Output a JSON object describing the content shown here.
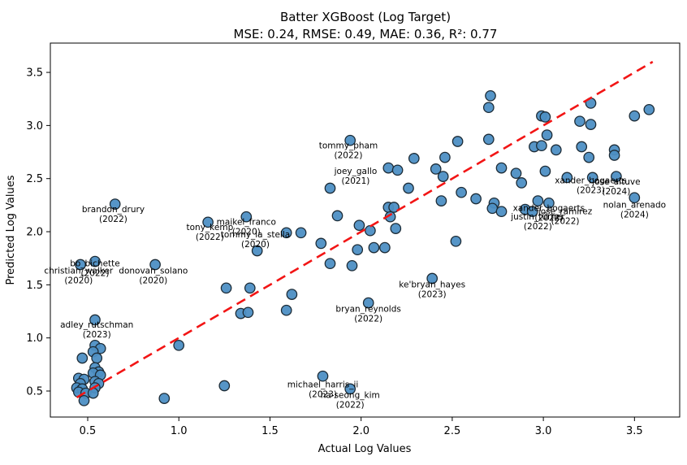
{
  "figure": {
    "title": "Batter XGBoost (Log Target)",
    "subtitle": "MSE: 0.24, RMSE: 0.49, MAE: 0.36, R²: 0.77"
  },
  "chart_data": {
    "type": "scatter",
    "title": "Batter XGBoost (Log Target)",
    "subtitle": "MSE: 0.24, RMSE: 0.49, MAE: 0.36, R²: 0.77",
    "metrics": {
      "MSE": 0.24,
      "RMSE": 0.49,
      "MAE": 0.36,
      "R2": 0.77
    },
    "xlabel": "Actual Log Values",
    "ylabel": "Predicted Log Values",
    "xlim": [
      0.295,
      3.748
    ],
    "ylim": [
      0.255,
      3.776
    ],
    "xticks": [
      0.5,
      1.0,
      1.5,
      2.0,
      2.5,
      3.0,
      3.5
    ],
    "yticks": [
      0.5,
      1.0,
      1.5,
      2.0,
      2.5,
      3.0,
      3.5
    ],
    "grid": false,
    "legend": "none",
    "identity_line": {
      "from": [
        0.44,
        0.44
      ],
      "to": [
        3.6,
        3.6
      ],
      "color": "#f21515",
      "style": "dashed",
      "width": 2.6
    },
    "marker": {
      "fill": "#4d8fc4",
      "edge": "#1c2b36",
      "radius": 6.2,
      "opacity": 0.95
    },
    "annotation_styles": {
      "red": "#ee1c1c",
      "blue": "#2424dd"
    },
    "points": [
      [
        0.54,
        0.93
      ],
      [
        0.57,
        0.9
      ],
      [
        0.53,
        0.87
      ],
      [
        0.47,
        0.81
      ],
      [
        0.55,
        0.81
      ],
      [
        0.54,
        0.72
      ],
      [
        0.56,
        0.68
      ],
      [
        0.53,
        0.67
      ],
      [
        0.57,
        0.65
      ],
      [
        0.45,
        0.62
      ],
      [
        0.48,
        0.61
      ],
      [
        0.54,
        0.59
      ],
      [
        0.46,
        0.57
      ],
      [
        0.56,
        0.57
      ],
      [
        0.44,
        0.53
      ],
      [
        0.47,
        0.52
      ],
      [
        0.54,
        0.53
      ],
      [
        0.45,
        0.49
      ],
      [
        0.49,
        0.48
      ],
      [
        0.53,
        0.48
      ],
      [
        0.48,
        0.41
      ],
      [
        0.54,
        1.17
      ],
      [
        1.0,
        0.93
      ],
      [
        0.92,
        0.43
      ],
      [
        1.25,
        0.55
      ],
      [
        0.46,
        1.69
      ],
      [
        0.54,
        1.72
      ],
      [
        0.87,
        1.69
      ],
      [
        0.65,
        2.26
      ],
      [
        1.16,
        2.09
      ],
      [
        1.37,
        2.14
      ],
      [
        1.59,
        1.99
      ],
      [
        1.67,
        1.99
      ],
      [
        1.43,
        1.82
      ],
      [
        1.26,
        1.47
      ],
      [
        1.39,
        1.47
      ],
      [
        1.62,
        1.41
      ],
      [
        1.59,
        1.26
      ],
      [
        1.34,
        1.23
      ],
      [
        1.38,
        1.24
      ],
      [
        1.79,
        0.64
      ],
      [
        1.94,
        0.52
      ],
      [
        1.94,
        2.86
      ],
      [
        1.83,
        2.41
      ],
      [
        1.87,
        2.15
      ],
      [
        1.78,
        1.89
      ],
      [
        1.83,
        1.7
      ],
      [
        1.95,
        1.68
      ],
      [
        1.99,
        2.06
      ],
      [
        2.05,
        2.01
      ],
      [
        1.98,
        1.83
      ],
      [
        2.07,
        1.85
      ],
      [
        2.13,
        1.85
      ],
      [
        2.04,
        1.33
      ],
      [
        2.39,
        1.56
      ],
      [
        2.15,
        2.6
      ],
      [
        2.2,
        2.58
      ],
      [
        2.29,
        2.69
      ],
      [
        2.41,
        2.59
      ],
      [
        2.46,
        2.7
      ],
      [
        2.45,
        2.52
      ],
      [
        2.53,
        2.85
      ],
      [
        2.26,
        2.41
      ],
      [
        2.55,
        2.37
      ],
      [
        2.44,
        2.29
      ],
      [
        2.15,
        2.23
      ],
      [
        2.18,
        2.23
      ],
      [
        2.16,
        2.14
      ],
      [
        2.19,
        2.03
      ],
      [
        2.52,
        1.91
      ],
      [
        2.71,
        3.28
      ],
      [
        2.7,
        3.17
      ],
      [
        2.99,
        3.09
      ],
      [
        3.01,
        3.08
      ],
      [
        3.26,
        3.21
      ],
      [
        3.2,
        3.04
      ],
      [
        3.26,
        3.01
      ],
      [
        3.5,
        3.09
      ],
      [
        3.58,
        3.15
      ],
      [
        2.7,
        2.87
      ],
      [
        2.95,
        2.8
      ],
      [
        2.99,
        2.81
      ],
      [
        3.02,
        2.91
      ],
      [
        3.07,
        2.77
      ],
      [
        3.21,
        2.8
      ],
      [
        3.39,
        2.77
      ],
      [
        3.39,
        2.72
      ],
      [
        3.25,
        2.7
      ],
      [
        2.77,
        2.6
      ],
      [
        2.85,
        2.55
      ],
      [
        2.88,
        2.46
      ],
      [
        3.01,
        2.57
      ],
      [
        3.13,
        2.51
      ],
      [
        3.27,
        2.51
      ],
      [
        3.4,
        2.52
      ],
      [
        2.63,
        2.31
      ],
      [
        2.73,
        2.27
      ],
      [
        2.72,
        2.22
      ],
      [
        2.77,
        2.19
      ],
      [
        2.9,
        2.21
      ],
      [
        2.94,
        2.19
      ],
      [
        2.97,
        2.29
      ],
      [
        3.03,
        2.27
      ],
      [
        3.5,
        2.32
      ]
    ],
    "annotations": [
      {
        "label": "brandon_drury",
        "year": "(2022)",
        "x": 0.64,
        "y": 2.17,
        "color": "red"
      },
      {
        "label": "christian_walker",
        "year": "(2020)",
        "x": 0.45,
        "y": 1.59,
        "color": "red"
      },
      {
        "label": "bo_bichette",
        "year": "(2022)",
        "x": 0.54,
        "y": 1.66,
        "color": "red"
      },
      {
        "label": "donovan_solano",
        "year": "(2020)",
        "x": 0.86,
        "y": 1.59,
        "color": "red"
      },
      {
        "label": "adley_rutschman",
        "year": "(2023)",
        "x": 0.55,
        "y": 1.08,
        "color": "red"
      },
      {
        "label": "tony_kemp",
        "year": "(2022)",
        "x": 1.17,
        "y": 2.0,
        "color": "red"
      },
      {
        "label": "maikel_franco",
        "year": "(2020)",
        "x": 1.37,
        "y": 2.05,
        "color": "red"
      },
      {
        "label": "tommy_la_stella",
        "year": "(2020)",
        "x": 1.42,
        "y": 1.93,
        "color": "red"
      },
      {
        "label": "tommy_pham",
        "year": "(2022)",
        "x": 1.93,
        "y": 2.77,
        "color": "red"
      },
      {
        "label": "joey_gallo",
        "year": "(2021)",
        "x": 1.97,
        "y": 2.53,
        "color": "red"
      },
      {
        "label": "ke'bryan_hayes",
        "year": "(2023)",
        "x": 2.39,
        "y": 1.46,
        "color": "blue"
      },
      {
        "label": "bryan_reynolds",
        "year": "(2022)",
        "x": 2.04,
        "y": 1.23,
        "color": "blue"
      },
      {
        "label": "michael_harris_ii",
        "year": "(2023)",
        "x": 1.79,
        "y": 0.52,
        "color": "blue"
      },
      {
        "label": "ha-seong_kim",
        "year": "(2022)",
        "x": 1.94,
        "y": 0.42,
        "color": "blue"
      },
      {
        "label": "xander_bogaerts",
        "year": "(2023)",
        "x": 3.26,
        "y": 2.44,
        "color": "blue"
      },
      {
        "label": "jose_altuve",
        "year": "(2024)",
        "x": 3.4,
        "y": 2.43,
        "color": "blue"
      },
      {
        "label": "nolan_arenado",
        "year": "(2024)",
        "x": 3.5,
        "y": 2.21,
        "color": "blue"
      },
      {
        "label": "xander_bogaerts",
        "year": "(2022)",
        "x": 3.03,
        "y": 2.18,
        "color": "blue"
      },
      {
        "label": "justin_turner",
        "year": "(2022)",
        "x": 2.97,
        "y": 2.1,
        "color": "blue"
      },
      {
        "label": "jose_ramirez",
        "year": "(2022)",
        "x": 3.12,
        "y": 2.15,
        "color": "blue"
      }
    ]
  }
}
